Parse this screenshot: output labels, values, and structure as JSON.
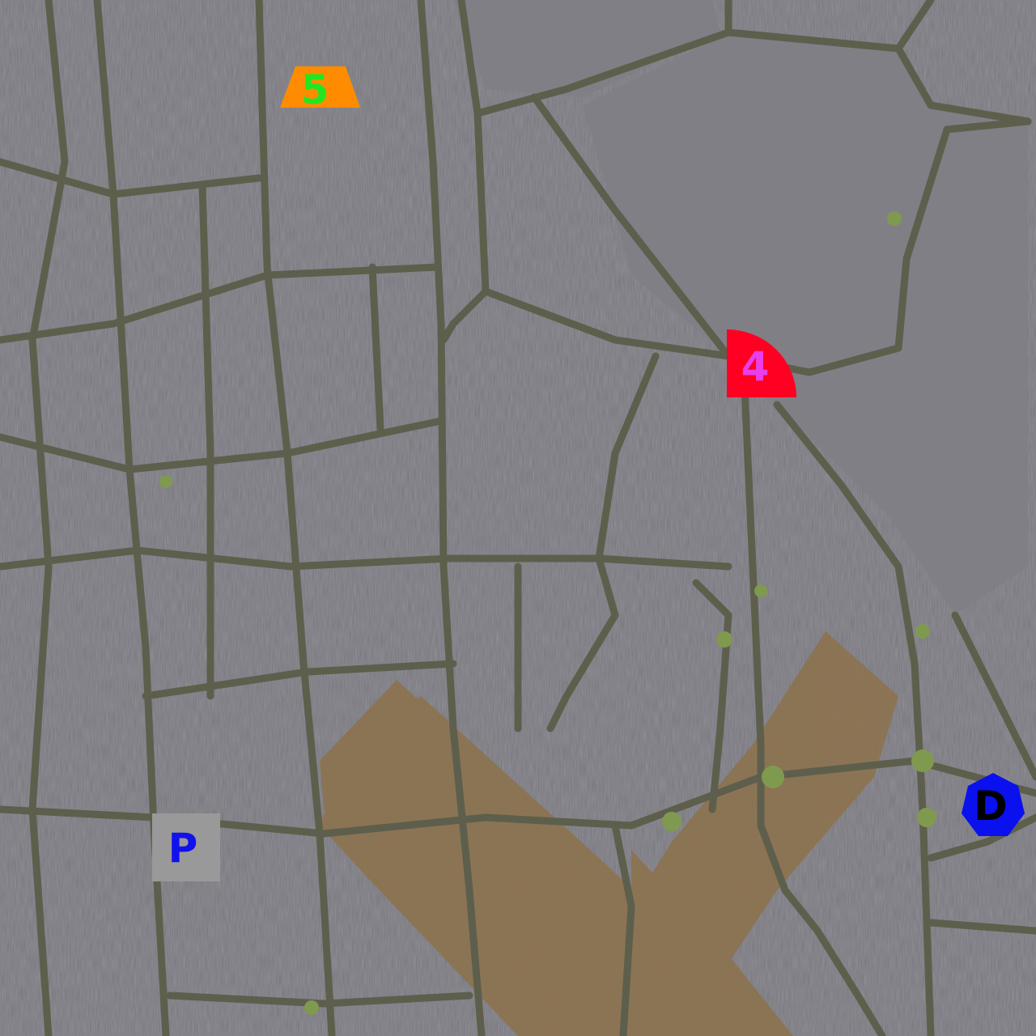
{
  "scene": {
    "type": "aerial photograph of cracked asphalt pavement with grass in the cracks and a faded X marking",
    "colors": {
      "asphalt": "#76757c",
      "asphalt_light": "#8a898f",
      "crack": "#5d5f4c",
      "grass": "#7f9a4e",
      "x_marking": "#8c7350"
    }
  },
  "markers": [
    {
      "id": "orange-trapezoid",
      "shape": "trapezoid",
      "fill": "#ff8c00",
      "label": "5",
      "label_color": "#22e622"
    },
    {
      "id": "red-quarter-circle",
      "shape": "quarter-circle",
      "fill": "#ff0022",
      "label": "4",
      "label_color": "#e93ee9"
    },
    {
      "id": "gray-square",
      "shape": "square",
      "fill": "#999999",
      "label": "P",
      "label_color": "#1111ee"
    },
    {
      "id": "blue-heptagon",
      "shape": "heptagon",
      "fill": "#0a10ee",
      "label": "D",
      "label_color": "#000000"
    }
  ]
}
